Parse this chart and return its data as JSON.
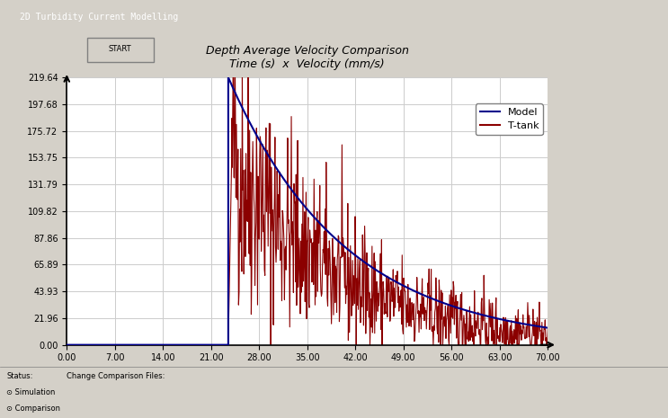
{
  "title_line1": "Depth Average Velocity Comparison",
  "title_line2": "Time (s)  x  Velocity (mm/s)",
  "xlim": [
    0.0,
    70.0
  ],
  "ylim": [
    0.0,
    219.64
  ],
  "xticks": [
    0.0,
    7.0,
    14.0,
    21.0,
    28.0,
    35.0,
    42.0,
    49.0,
    56.0,
    63.0,
    70.0
  ],
  "yticks": [
    0.0,
    21.96,
    43.93,
    65.89,
    87.86,
    109.82,
    131.79,
    153.75,
    175.72,
    197.68,
    219.64
  ],
  "model_color": "#00008B",
  "ttank_color": "#8B0000",
  "bg_color": "#f0f0f0",
  "plot_bg_color": "#ffffff",
  "legend_labels": [
    "Model",
    "T-tank"
  ],
  "spike_x": 23.5,
  "spike_peak": 219.64,
  "decay_start_x": 23.5,
  "decay_end_x": 70.0,
  "noise_amplitude_factor": 0.4,
  "window_title": "2D Turbidity Current Modelling",
  "status_bar_height": 60
}
